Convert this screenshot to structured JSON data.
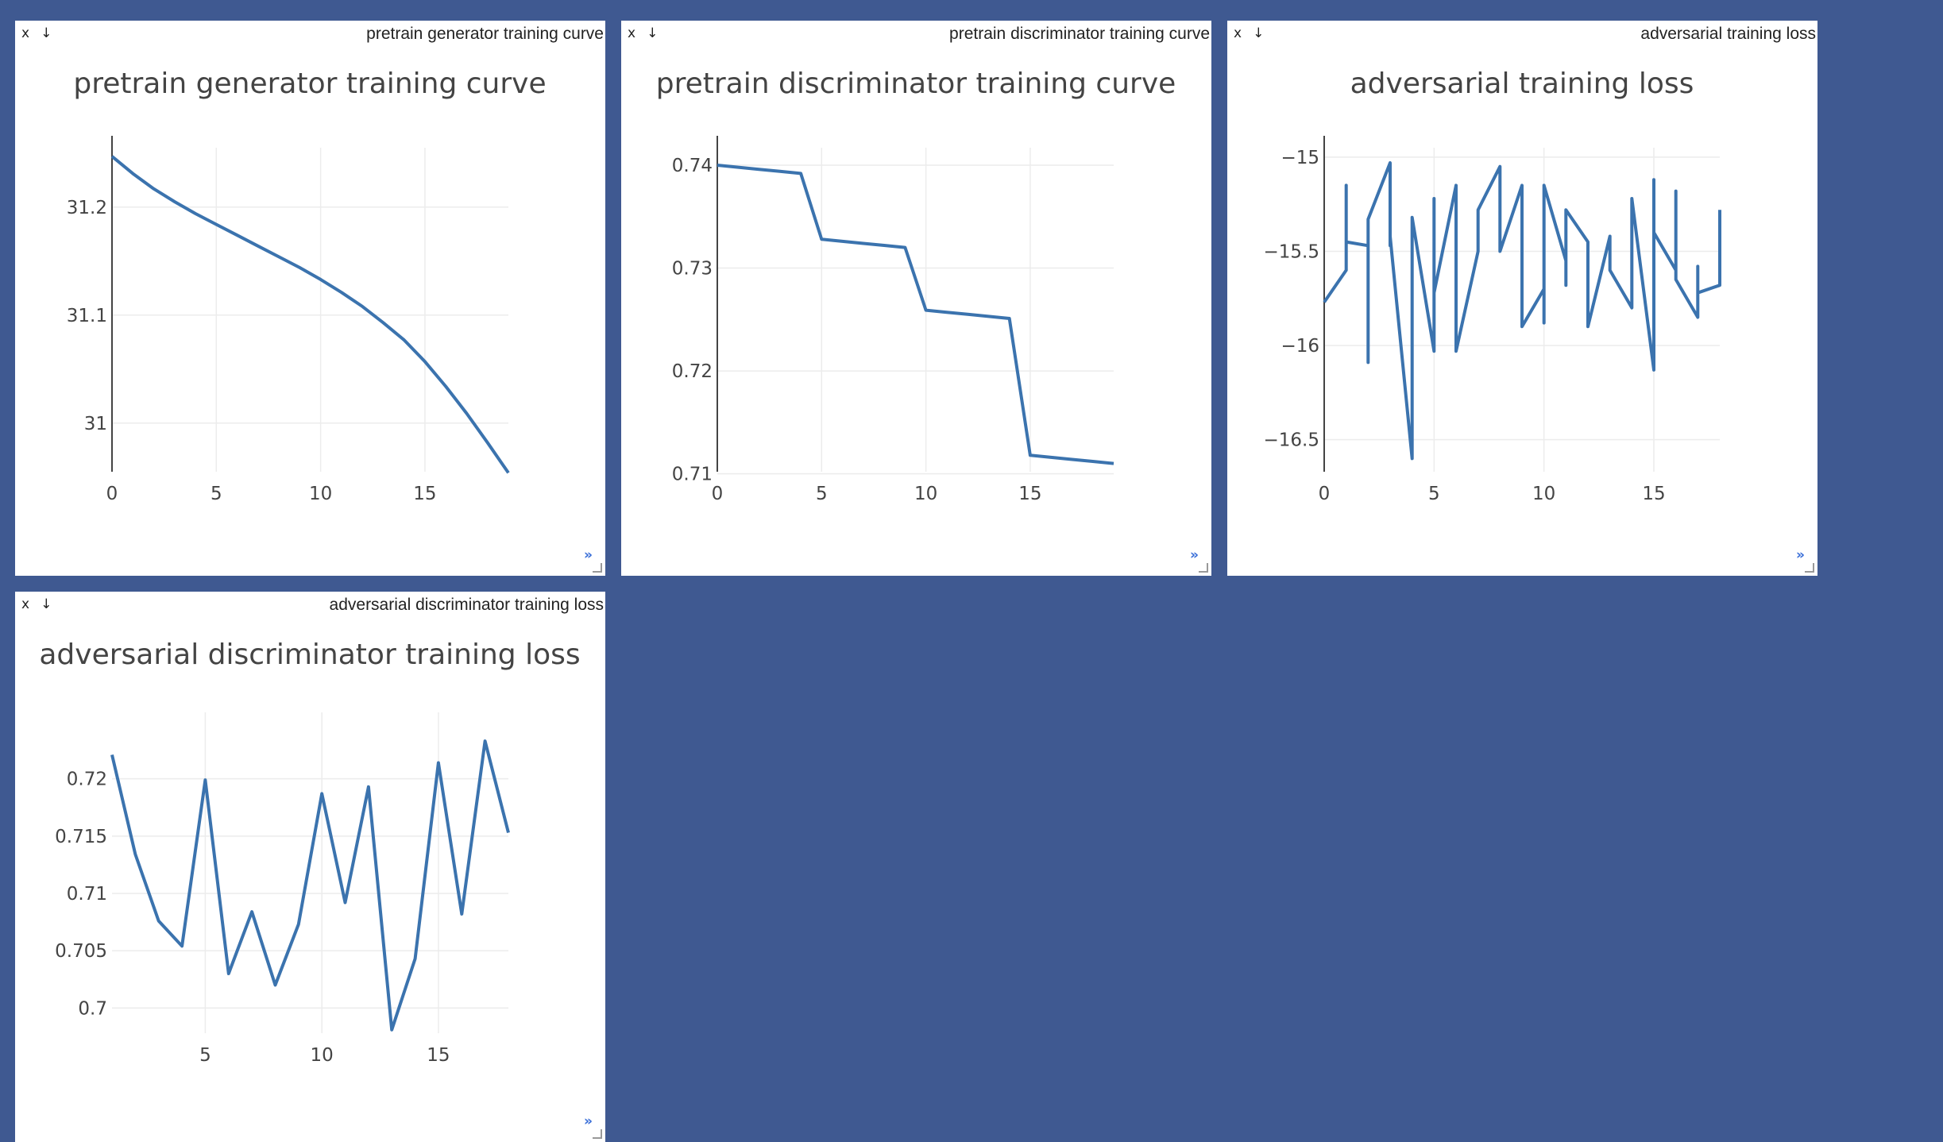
{
  "colors": {
    "background": "#3f5991",
    "pane": "#ffffff",
    "line": "#3b73ae",
    "grid": "#ececec",
    "text": "#444444"
  },
  "panes": [
    {
      "id": "p1",
      "caption": "pretrain generator training curve",
      "close_label": "x",
      "download_label": "↓",
      "expand_label": "»"
    },
    {
      "id": "p2",
      "caption": "pretrain discriminator training curve",
      "close_label": "x",
      "download_label": "↓",
      "expand_label": "»"
    },
    {
      "id": "p3",
      "caption": "adversarial training loss",
      "close_label": "x",
      "download_label": "↓",
      "expand_label": "»"
    },
    {
      "id": "p4",
      "caption": "adversarial discriminator training loss",
      "close_label": "x",
      "download_label": "↓",
      "expand_label": "»"
    }
  ],
  "chart_data": [
    {
      "type": "line",
      "title": "pretrain generator training curve",
      "xlim": [
        0,
        19
      ],
      "ylim": [
        30.955,
        31.255
      ],
      "xticks": [
        0,
        5,
        10,
        15
      ],
      "xtick_labels": [
        "0",
        "5",
        "10",
        "15"
      ],
      "yticks": [
        31.0,
        31.1,
        31.2
      ],
      "ytick_labels": [
        "31",
        "31.1",
        "31.2"
      ],
      "grid": true,
      "x": [
        0,
        1,
        2,
        3,
        4,
        5,
        6,
        7,
        8,
        9,
        10,
        11,
        12,
        13,
        14,
        15,
        16,
        17,
        18,
        19
      ],
      "y": [
        31.247,
        31.231,
        31.217,
        31.205,
        31.194,
        31.184,
        31.174,
        31.164,
        31.154,
        31.144,
        31.133,
        31.121,
        31.108,
        31.093,
        31.077,
        31.057,
        31.034,
        31.009,
        30.982,
        30.954
      ]
    },
    {
      "type": "line",
      "title": "pretrain discriminator training curve",
      "xlim": [
        0,
        19
      ],
      "ylim": [
        0.7102,
        0.7417
      ],
      "xticks": [
        0,
        5,
        10,
        15
      ],
      "xtick_labels": [
        "0",
        "5",
        "10",
        "15"
      ],
      "yticks": [
        0.71,
        0.72,
        0.73,
        0.74
      ],
      "ytick_labels": [
        "0.71",
        "0.72",
        "0.73",
        "0.74"
      ],
      "grid": true,
      "x": [
        0,
        1,
        2,
        3,
        4,
        5,
        6,
        7,
        8,
        9,
        10,
        11,
        12,
        13,
        14,
        15,
        16,
        17,
        18,
        19
      ],
      "y": [
        0.74,
        0.7398,
        0.7396,
        0.7394,
        0.7392,
        0.7328,
        0.7326,
        0.7324,
        0.7322,
        0.732,
        0.7259,
        0.7257,
        0.7255,
        0.7253,
        0.7251,
        0.7118,
        0.7116,
        0.7114,
        0.7112,
        0.711
      ]
    },
    {
      "type": "line",
      "title": "adversarial training loss",
      "xlim": [
        0,
        18
      ],
      "ylim": [
        -16.67,
        -14.95
      ],
      "xticks": [
        0,
        5,
        10,
        15
      ],
      "xtick_labels": [
        "0",
        "5",
        "10",
        "15"
      ],
      "yticks": [
        -16.5,
        -16,
        -15.5,
        -15
      ],
      "ytick_labels": [
        "−16.5",
        "−16",
        "−15.5",
        "−15"
      ],
      "grid": true,
      "x": [
        0,
        1,
        1,
        1,
        2,
        2,
        2,
        3,
        3,
        3,
        4,
        4,
        4,
        5,
        5,
        5,
        6,
        6,
        6,
        7,
        7,
        8,
        8,
        9,
        9,
        9,
        10,
        10,
        10,
        11,
        11,
        11,
        12,
        12,
        12,
        13,
        13,
        13,
        14,
        14,
        14,
        15,
        15,
        15,
        16,
        16,
        16,
        17,
        17,
        17,
        18,
        18
      ],
      "y": [
        -15.77,
        -15.6,
        -15.15,
        -15.45,
        -15.47,
        -16.09,
        -15.33,
        -15.03,
        -15.47,
        -15.42,
        -16.6,
        -15.4,
        -15.32,
        -16.03,
        -15.22,
        -15.72,
        -15.15,
        -15.45,
        -16.03,
        -15.5,
        -15.28,
        -15.05,
        -15.5,
        -15.15,
        -15.45,
        -15.9,
        -15.7,
        -15.88,
        -15.15,
        -15.55,
        -15.68,
        -15.28,
        -15.45,
        -15.58,
        -15.9,
        -15.42,
        -15.55,
        -15.6,
        -15.8,
        -15.45,
        -15.22,
        -16.13,
        -15.12,
        -15.4,
        -15.6,
        -15.18,
        -15.65,
        -15.85,
        -15.58,
        -15.72,
        -15.68,
        -15.28
      ]
    },
    {
      "type": "line",
      "title": "adversarial discriminator training loss",
      "xlim": [
        1,
        18
      ],
      "ylim": [
        0.6978,
        0.7258
      ],
      "xticks": [
        5,
        10,
        15
      ],
      "xtick_labels": [
        "5",
        "10",
        "15"
      ],
      "yticks": [
        0.7,
        0.705,
        0.71,
        0.715,
        0.72
      ],
      "ytick_labels": [
        "0.7",
        "0.705",
        "0.71",
        "0.715",
        "0.72"
      ],
      "grid": true,
      "x": [
        1,
        2,
        3,
        4,
        5,
        6,
        7,
        8,
        9,
        10,
        11,
        12,
        13,
        14,
        15,
        16,
        17,
        18
      ],
      "y": [
        0.7221,
        0.7134,
        0.7076,
        0.7054,
        0.7199,
        0.703,
        0.7084,
        0.702,
        0.7073,
        0.7187,
        0.7092,
        0.7193,
        0.6981,
        0.7043,
        0.7214,
        0.7082,
        0.7233,
        0.7153
      ]
    }
  ]
}
